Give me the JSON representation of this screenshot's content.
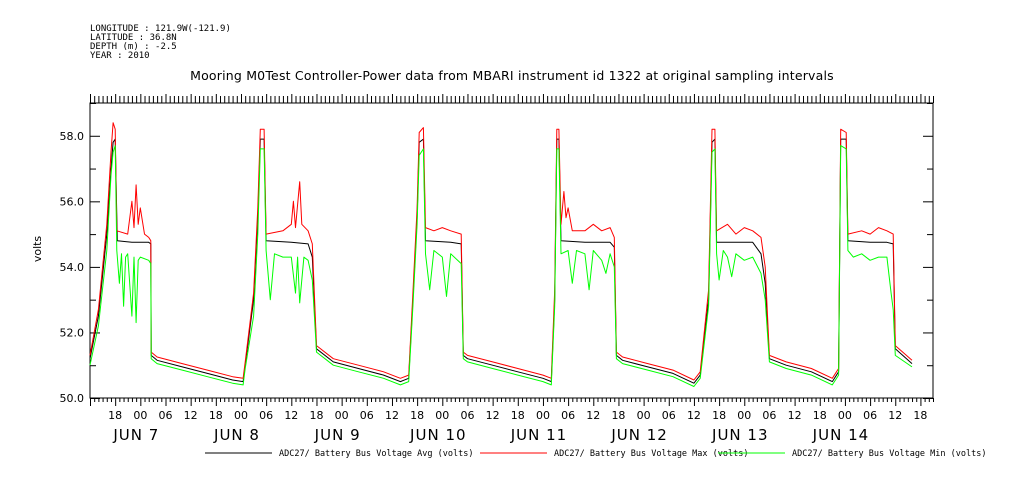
{
  "meta": {
    "longitude": "LONGITUDE : 121.9W(-121.9)",
    "latitude": "LATITUDE : 36.8N",
    "depth": "DEPTH (m) : -2.5",
    "year": "YEAR : 2010"
  },
  "chart_data": {
    "type": "line",
    "title": "Mooring M0Test Controller-Power data from MBARI instrument id 1322 at original sampling intervals",
    "ylabel": "volts",
    "ylim": [
      50.0,
      59.0
    ],
    "xlim_hours": [
      0,
      201
    ],
    "x_unit": "hours since JUN 6 12:00 (2010)",
    "y_ticks": [
      "50.0",
      "52.0",
      "54.0",
      "56.0",
      "58.0"
    ],
    "hour_ticks": [
      "18",
      "00",
      "06",
      "12",
      "18",
      "00",
      "06",
      "12",
      "18",
      "00",
      "06",
      "12",
      "18",
      "00",
      "06",
      "12",
      "18",
      "00",
      "06",
      "12",
      "18",
      "00",
      "06",
      "12",
      "18",
      "00",
      "06",
      "12",
      "18",
      "00",
      "06",
      "12",
      "18"
    ],
    "day_labels": [
      "JUN  7",
      "JUN  8",
      "JUN  9",
      "JUN 10",
      "JUN 11",
      "JUN 12",
      "JUN 13",
      "JUN 14"
    ],
    "series": [
      {
        "name": "ADC27/ Battery Bus Voltage Avg (volts)",
        "color": "#000000",
        "points": [
          [
            0,
            51.2
          ],
          [
            2,
            52.5
          ],
          [
            4,
            55.0
          ],
          [
            5,
            57.0
          ],
          [
            5.5,
            57.8
          ],
          [
            6,
            57.9
          ],
          [
            6.5,
            54.8
          ],
          [
            10,
            54.75
          ],
          [
            14,
            54.75
          ],
          [
            14.5,
            54.7
          ],
          [
            14.6,
            51.3
          ],
          [
            16,
            51.15
          ],
          [
            22,
            50.95
          ],
          [
            28,
            50.75
          ],
          [
            34,
            50.55
          ],
          [
            36.5,
            50.5
          ],
          [
            37,
            51.0
          ],
          [
            39,
            53.0
          ],
          [
            40,
            55.5
          ],
          [
            40.6,
            57.9
          ],
          [
            41.5,
            57.9
          ],
          [
            42,
            54.8
          ],
          [
            48,
            54.75
          ],
          [
            52,
            54.7
          ],
          [
            53,
            54.3
          ],
          [
            54,
            51.5
          ],
          [
            58,
            51.1
          ],
          [
            64,
            50.9
          ],
          [
            70,
            50.7
          ],
          [
            74,
            50.5
          ],
          [
            76,
            50.6
          ],
          [
            77,
            53.0
          ],
          [
            78,
            55.5
          ],
          [
            78.5,
            57.8
          ],
          [
            79.5,
            57.9
          ],
          [
            80,
            54.8
          ],
          [
            86,
            54.75
          ],
          [
            88.5,
            54.7
          ],
          [
            89,
            51.3
          ],
          [
            90,
            51.2
          ],
          [
            96,
            51.0
          ],
          [
            102,
            50.8
          ],
          [
            108,
            50.6
          ],
          [
            110,
            50.5
          ],
          [
            110.8,
            53.0
          ],
          [
            111.3,
            57.9
          ],
          [
            111.8,
            57.9
          ],
          [
            112.3,
            54.8
          ],
          [
            118,
            54.75
          ],
          [
            124,
            54.75
          ],
          [
            125,
            54.6
          ],
          [
            125.5,
            51.3
          ],
          [
            127,
            51.15
          ],
          [
            133,
            50.95
          ],
          [
            139,
            50.75
          ],
          [
            144,
            50.45
          ],
          [
            145.5,
            50.7
          ],
          [
            147.5,
            53.0
          ],
          [
            148.3,
            57.8
          ],
          [
            149,
            57.9
          ],
          [
            149.4,
            54.75
          ],
          [
            154,
            54.75
          ],
          [
            158,
            54.75
          ],
          [
            160,
            54.4
          ],
          [
            161,
            53.5
          ],
          [
            162,
            51.2
          ],
          [
            166,
            51.0
          ],
          [
            172,
            50.8
          ],
          [
            177,
            50.5
          ],
          [
            178.5,
            50.8
          ],
          [
            179,
            57.9
          ],
          [
            180.3,
            57.9
          ],
          [
            180.7,
            54.8
          ],
          [
            186,
            54.75
          ],
          [
            190,
            54.75
          ],
          [
            191.5,
            54.7
          ],
          [
            192,
            51.5
          ],
          [
            196,
            51.05
          ],
          [
            202,
            50.85
          ],
          [
            208,
            50.6
          ],
          [
            214,
            50.45
          ],
          [
            216,
            51.0
          ],
          [
            217,
            51.1
          ]
        ]
      },
      {
        "name": "ADC27/ Battery Bus Voltage Max (volts)",
        "color": "#ff0000",
        "points": [
          [
            0,
            51.3
          ],
          [
            2,
            52.7
          ],
          [
            4,
            55.3
          ],
          [
            5,
            57.5
          ],
          [
            5.5,
            58.4
          ],
          [
            6,
            58.2
          ],
          [
            6.4,
            55.1
          ],
          [
            9,
            55.0
          ],
          [
            10,
            56.0
          ],
          [
            10.5,
            55.2
          ],
          [
            11,
            56.5
          ],
          [
            11.5,
            55.3
          ],
          [
            12,
            55.8
          ],
          [
            13,
            55.0
          ],
          [
            14,
            54.9
          ],
          [
            14.5,
            54.8
          ],
          [
            14.6,
            51.4
          ],
          [
            16,
            51.25
          ],
          [
            22,
            51.05
          ],
          [
            28,
            50.85
          ],
          [
            34,
            50.65
          ],
          [
            36.5,
            50.6
          ],
          [
            37,
            51.1
          ],
          [
            39,
            53.2
          ],
          [
            40,
            55.8
          ],
          [
            40.6,
            58.2
          ],
          [
            41.5,
            58.2
          ],
          [
            42,
            55.0
          ],
          [
            46,
            55.1
          ],
          [
            48,
            55.3
          ],
          [
            48.5,
            56.0
          ],
          [
            49,
            55.2
          ],
          [
            50,
            56.6
          ],
          [
            50.5,
            55.3
          ],
          [
            52,
            55.1
          ],
          [
            53,
            54.7
          ],
          [
            54,
            51.6
          ],
          [
            58,
            51.2
          ],
          [
            64,
            51.0
          ],
          [
            70,
            50.8
          ],
          [
            74,
            50.6
          ],
          [
            76,
            50.7
          ],
          [
            77,
            53.2
          ],
          [
            78,
            55.8
          ],
          [
            78.5,
            58.1
          ],
          [
            79.5,
            58.25
          ],
          [
            80,
            55.2
          ],
          [
            82,
            55.1
          ],
          [
            84,
            55.2
          ],
          [
            86,
            55.1
          ],
          [
            88.5,
            55.0
          ],
          [
            89,
            51.4
          ],
          [
            90,
            51.3
          ],
          [
            96,
            51.1
          ],
          [
            102,
            50.9
          ],
          [
            108,
            50.7
          ],
          [
            110,
            50.6
          ],
          [
            110.8,
            53.3
          ],
          [
            111.3,
            58.2
          ],
          [
            111.8,
            58.2
          ],
          [
            112.3,
            55.3
          ],
          [
            113,
            56.3
          ],
          [
            113.5,
            55.5
          ],
          [
            114,
            55.8
          ],
          [
            115,
            55.1
          ],
          [
            118,
            55.1
          ],
          [
            120,
            55.3
          ],
          [
            122,
            55.1
          ],
          [
            124,
            55.2
          ],
          [
            125,
            54.9
          ],
          [
            125.5,
            51.4
          ],
          [
            127,
            51.25
          ],
          [
            133,
            51.05
          ],
          [
            139,
            50.85
          ],
          [
            144,
            50.55
          ],
          [
            145.5,
            50.8
          ],
          [
            147.5,
            53.3
          ],
          [
            148.3,
            58.2
          ],
          [
            149,
            58.2
          ],
          [
            149.4,
            55.1
          ],
          [
            152,
            55.3
          ],
          [
            154,
            55.0
          ],
          [
            156,
            55.2
          ],
          [
            158,
            55.1
          ],
          [
            160,
            54.9
          ],
          [
            161,
            54.0
          ],
          [
            162,
            51.3
          ],
          [
            166,
            51.1
          ],
          [
            172,
            50.9
          ],
          [
            177,
            50.6
          ],
          [
            178.5,
            50.9
          ],
          [
            179,
            58.2
          ],
          [
            180.3,
            58.1
          ],
          [
            180.7,
            55.0
          ],
          [
            184,
            55.1
          ],
          [
            186,
            55.0
          ],
          [
            188,
            55.2
          ],
          [
            190,
            55.1
          ],
          [
            191.5,
            55.0
          ],
          [
            192,
            51.6
          ],
          [
            196,
            51.15
          ],
          [
            202,
            50.95
          ],
          [
            208,
            50.7
          ],
          [
            214,
            50.55
          ],
          [
            216,
            51.1
          ],
          [
            217,
            51.2
          ]
        ]
      },
      {
        "name": "ADC27/ Battery Bus Voltage Min (volts)",
        "color": "#00ff00",
        "points": [
          [
            0,
            51.0
          ],
          [
            2,
            52.2
          ],
          [
            4,
            54.5
          ],
          [
            5,
            56.8
          ],
          [
            5.5,
            57.5
          ],
          [
            6,
            57.7
          ],
          [
            6.4,
            54.5
          ],
          [
            7,
            53.5
          ],
          [
            7.5,
            54.4
          ],
          [
            8,
            52.8
          ],
          [
            8.5,
            54.3
          ],
          [
            9,
            54.4
          ],
          [
            10,
            52.5
          ],
          [
            10.5,
            54.3
          ],
          [
            11,
            52.3
          ],
          [
            11.5,
            54.2
          ],
          [
            12,
            54.3
          ],
          [
            14,
            54.2
          ],
          [
            14.5,
            54.1
          ],
          [
            14.6,
            51.2
          ],
          [
            16,
            51.05
          ],
          [
            22,
            50.85
          ],
          [
            28,
            50.65
          ],
          [
            34,
            50.45
          ],
          [
            36.5,
            50.4
          ],
          [
            37,
            50.9
          ],
          [
            39,
            52.5
          ],
          [
            40,
            55.0
          ],
          [
            40.6,
            57.6
          ],
          [
            41.5,
            57.6
          ],
          [
            42,
            54.5
          ],
          [
            43,
            53.0
          ],
          [
            44,
            54.4
          ],
          [
            46,
            54.3
          ],
          [
            48,
            54.3
          ],
          [
            49,
            53.2
          ],
          [
            49.5,
            54.3
          ],
          [
            50,
            52.9
          ],
          [
            51,
            54.3
          ],
          [
            52,
            54.2
          ],
          [
            53,
            53.6
          ],
          [
            54,
            51.4
          ],
          [
            58,
            51.0
          ],
          [
            64,
            50.8
          ],
          [
            70,
            50.6
          ],
          [
            74,
            50.4
          ],
          [
            76,
            50.5
          ],
          [
            77,
            52.8
          ],
          [
            78,
            55.3
          ],
          [
            78.5,
            57.4
          ],
          [
            79.5,
            57.6
          ],
          [
            80,
            54.4
          ],
          [
            81,
            53.3
          ],
          [
            82,
            54.5
          ],
          [
            84,
            54.3
          ],
          [
            85,
            53.1
          ],
          [
            86,
            54.4
          ],
          [
            88.5,
            54.1
          ],
          [
            89,
            51.2
          ],
          [
            90,
            51.1
          ],
          [
            96,
            50.9
          ],
          [
            102,
            50.7
          ],
          [
            108,
            50.5
          ],
          [
            110,
            50.4
          ],
          [
            110.8,
            52.8
          ],
          [
            111.3,
            57.6
          ],
          [
            111.8,
            57.6
          ],
          [
            112.3,
            54.4
          ],
          [
            114,
            54.5
          ],
          [
            115,
            53.5
          ],
          [
            116,
            54.5
          ],
          [
            118,
            54.4
          ],
          [
            119,
            53.3
          ],
          [
            120,
            54.5
          ],
          [
            122,
            54.2
          ],
          [
            123,
            53.8
          ],
          [
            124,
            54.4
          ],
          [
            125,
            54.0
          ],
          [
            125.5,
            51.2
          ],
          [
            127,
            51.05
          ],
          [
            133,
            50.85
          ],
          [
            139,
            50.65
          ],
          [
            144,
            50.35
          ],
          [
            145.5,
            50.6
          ],
          [
            147.5,
            52.8
          ],
          [
            148.3,
            57.5
          ],
          [
            149,
            57.6
          ],
          [
            149.4,
            54.4
          ],
          [
            150,
            53.6
          ],
          [
            151,
            54.5
          ],
          [
            152,
            54.3
          ],
          [
            153,
            53.7
          ],
          [
            154,
            54.4
          ],
          [
            156,
            54.2
          ],
          [
            158,
            54.3
          ],
          [
            160,
            53.8
          ],
          [
            161,
            53.0
          ],
          [
            162,
            51.1
          ],
          [
            166,
            50.9
          ],
          [
            172,
            50.7
          ],
          [
            177,
            50.4
          ],
          [
            178.5,
            50.7
          ],
          [
            179,
            57.7
          ],
          [
            180.3,
            57.6
          ],
          [
            180.7,
            54.5
          ],
          [
            182,
            54.3
          ],
          [
            184,
            54.4
          ],
          [
            186,
            54.2
          ],
          [
            188,
            54.3
          ],
          [
            190,
            54.3
          ],
          [
            191,
            53.2
          ],
          [
            191.5,
            52.7
          ],
          [
            192,
            51.3
          ],
          [
            196,
            50.95
          ],
          [
            202,
            50.75
          ],
          [
            208,
            50.5
          ],
          [
            214,
            50.35
          ],
          [
            216,
            50.9
          ],
          [
            217,
            51.0
          ]
        ]
      }
    ]
  }
}
